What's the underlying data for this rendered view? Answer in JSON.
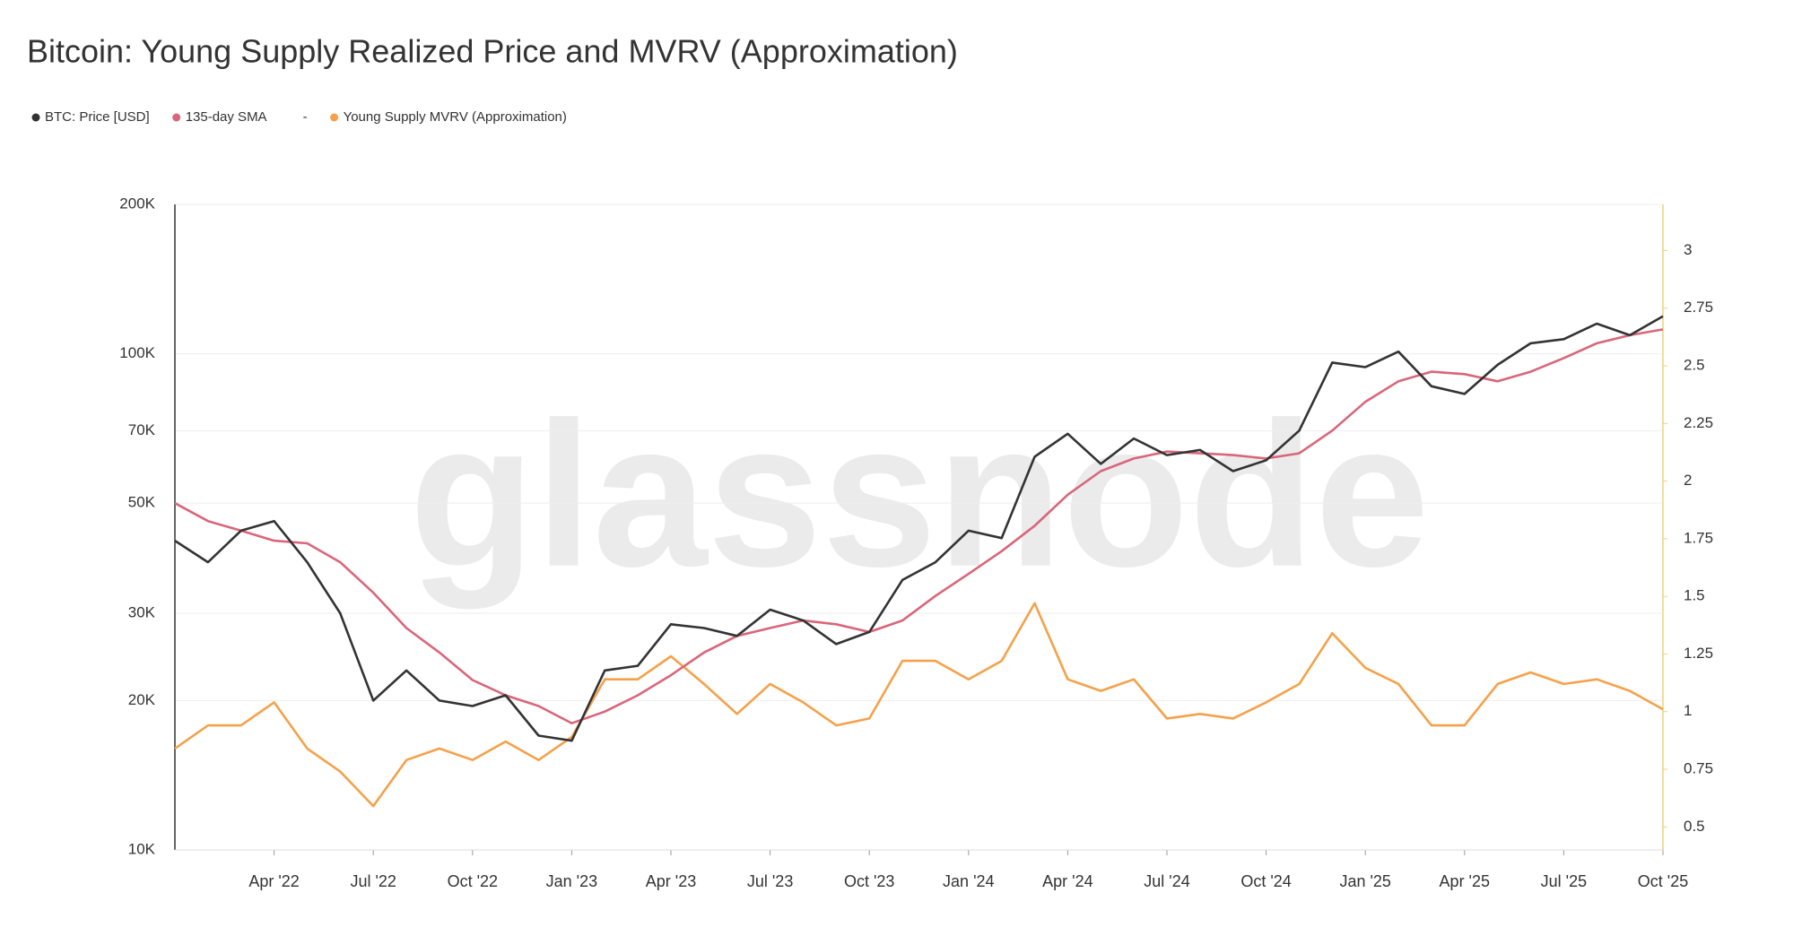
{
  "chart_data": {
    "type": "line",
    "title": "Bitcoin: Young Supply Realized Price and MVRV (Approximation)",
    "watermark": "glassnode",
    "legend_separator": "-",
    "x": [
      "2022-01",
      "2022-02",
      "2022-03",
      "2022-04",
      "2022-05",
      "2022-06",
      "2022-07",
      "2022-08",
      "2022-09",
      "2022-10",
      "2022-11",
      "2022-12",
      "2023-01",
      "2023-02",
      "2023-03",
      "2023-04",
      "2023-05",
      "2023-06",
      "2023-07",
      "2023-08",
      "2023-09",
      "2023-10",
      "2023-11",
      "2023-12",
      "2024-01",
      "2024-02",
      "2024-03",
      "2024-04",
      "2024-05",
      "2024-06",
      "2024-07",
      "2024-08",
      "2024-09",
      "2024-10",
      "2024-11",
      "2024-12",
      "2025-01",
      "2025-02",
      "2025-03",
      "2025-04",
      "2025-05",
      "2025-06",
      "2025-07",
      "2025-08",
      "2025-09",
      "2025-10"
    ],
    "xlim": [
      "2022-01",
      "2025-10"
    ],
    "xticks": [
      {
        "value": "2022-04",
        "label": "Apr '22"
      },
      {
        "value": "2022-07",
        "label": "Jul '22"
      },
      {
        "value": "2022-10",
        "label": "Oct '22"
      },
      {
        "value": "2023-01",
        "label": "Jan '23"
      },
      {
        "value": "2023-04",
        "label": "Apr '23"
      },
      {
        "value": "2023-07",
        "label": "Jul '23"
      },
      {
        "value": "2023-10",
        "label": "Oct '23"
      },
      {
        "value": "2024-01",
        "label": "Jan '24"
      },
      {
        "value": "2024-04",
        "label": "Apr '24"
      },
      {
        "value": "2024-07",
        "label": "Jul '24"
      },
      {
        "value": "2024-10",
        "label": "Oct '24"
      },
      {
        "value": "2025-01",
        "label": "Jan '25"
      },
      {
        "value": "2025-04",
        "label": "Apr '25"
      },
      {
        "value": "2025-07",
        "label": "Jul '25"
      },
      {
        "value": "2025-10",
        "label": "Oct '25"
      }
    ],
    "log_y": true,
    "ylim": [
      10000,
      200000
    ],
    "yticks": [
      {
        "value": 10000,
        "label": "10K"
      },
      {
        "value": 20000,
        "label": "20K"
      },
      {
        "value": 30000,
        "label": "30K"
      },
      {
        "value": 50000,
        "label": "50K"
      },
      {
        "value": 70000,
        "label": "70K"
      },
      {
        "value": 100000,
        "label": "100K"
      },
      {
        "value": 200000,
        "label": "200K"
      }
    ],
    "y2lim": [
      0.4,
      3.2
    ],
    "y2ticks": [
      0.5,
      0.75,
      1,
      1.25,
      1.5,
      1.75,
      2,
      2.25,
      2.5,
      2.75,
      3
    ],
    "grid": true,
    "series": [
      {
        "name": "BTC: Price [USD]",
        "color": "#333333",
        "axis": "y",
        "values": [
          42000,
          38000,
          44000,
          46000,
          38000,
          30000,
          20000,
          23000,
          20000,
          19500,
          20500,
          17000,
          16600,
          23000,
          23500,
          28500,
          28000,
          27000,
          30500,
          29000,
          26000,
          27500,
          35000,
          38000,
          44000,
          42500,
          62000,
          69000,
          60000,
          67500,
          62500,
          64000,
          58000,
          61000,
          70000,
          96000,
          94000,
          101000,
          86000,
          83000,
          95000,
          105000,
          107000,
          115000,
          109000,
          119000
        ]
      },
      {
        "name": "135-day SMA",
        "color": "#d9667a",
        "axis": "y",
        "values": [
          50000,
          46000,
          44000,
          42000,
          41500,
          38000,
          33000,
          28000,
          25000,
          22000,
          20500,
          19500,
          18000,
          19000,
          20500,
          22500,
          25000,
          27000,
          28000,
          29000,
          28500,
          27500,
          29000,
          32500,
          36000,
          40000,
          45000,
          52000,
          58000,
          61500,
          63500,
          63000,
          62500,
          61500,
          63000,
          70000,
          80000,
          88000,
          92000,
          91000,
          88000,
          92000,
          98000,
          105000,
          109000,
          112000
        ]
      },
      {
        "name": "Young Supply MVRV (Approximation)",
        "color": "#f5a14a",
        "axis": "y2",
        "values": [
          0.84,
          0.94,
          0.94,
          1.04,
          0.84,
          0.74,
          0.59,
          0.79,
          0.84,
          0.79,
          0.87,
          0.79,
          0.89,
          1.14,
          1.14,
          1.24,
          1.12,
          0.99,
          1.12,
          1.04,
          0.94,
          0.97,
          1.22,
          1.22,
          1.14,
          1.22,
          1.47,
          1.14,
          1.09,
          1.14,
          0.97,
          0.99,
          0.97,
          1.04,
          1.12,
          1.34,
          1.19,
          1.12,
          0.94,
          0.94,
          1.12,
          1.17,
          1.12,
          1.14,
          1.09,
          1.01
        ]
      }
    ]
  }
}
